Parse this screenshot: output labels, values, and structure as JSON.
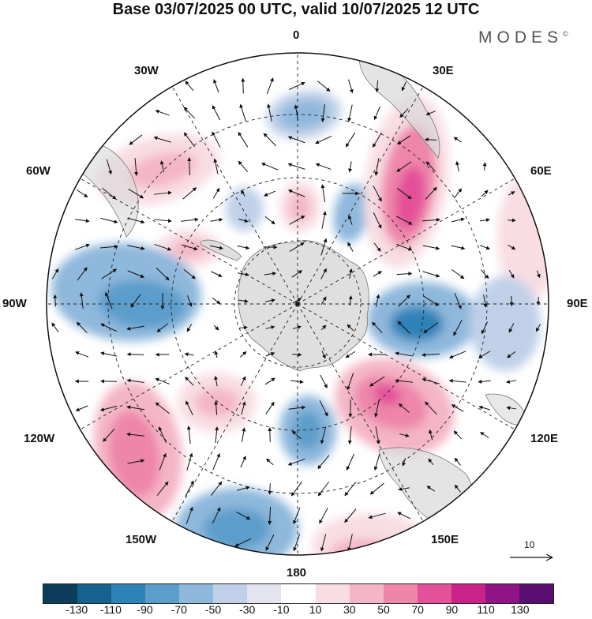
{
  "title": "Base 03/07/2025 00 UTC, valid 10/07/2025 12 UTC",
  "brand": "MODES",
  "longitude_labels": {
    "top": "0",
    "top_left": "30W",
    "top_right": "30E",
    "left_upper": "60W",
    "right_upper": "60E",
    "left": "90W",
    "right": "90E",
    "left_lower": "120W",
    "right_lower": "120E",
    "bottom_left": "150W",
    "bottom_right": "150E",
    "bottom": "180"
  },
  "vector_reference": {
    "label": "10"
  },
  "colorbar": {
    "ticks": [
      "-130",
      "-110",
      "-90",
      "-70",
      "-50",
      "-30",
      "-10",
      "10",
      "30",
      "50",
      "70",
      "90",
      "110",
      "130"
    ],
    "colors": [
      "#0c3d5c",
      "#15628f",
      "#2f82b8",
      "#5b9dcb",
      "#8eb8dc",
      "#bfd0e8",
      "#e4e4f1",
      "#ffffff",
      "#f8dde3",
      "#f4b6c6",
      "#ee86aa",
      "#e4509a",
      "#c92389",
      "#8f1587",
      "#5a0d71"
    ]
  },
  "colors": {
    "land": "#d9d9d9",
    "positive": "#ee86aa",
    "negative": "#5b9dcb"
  }
}
